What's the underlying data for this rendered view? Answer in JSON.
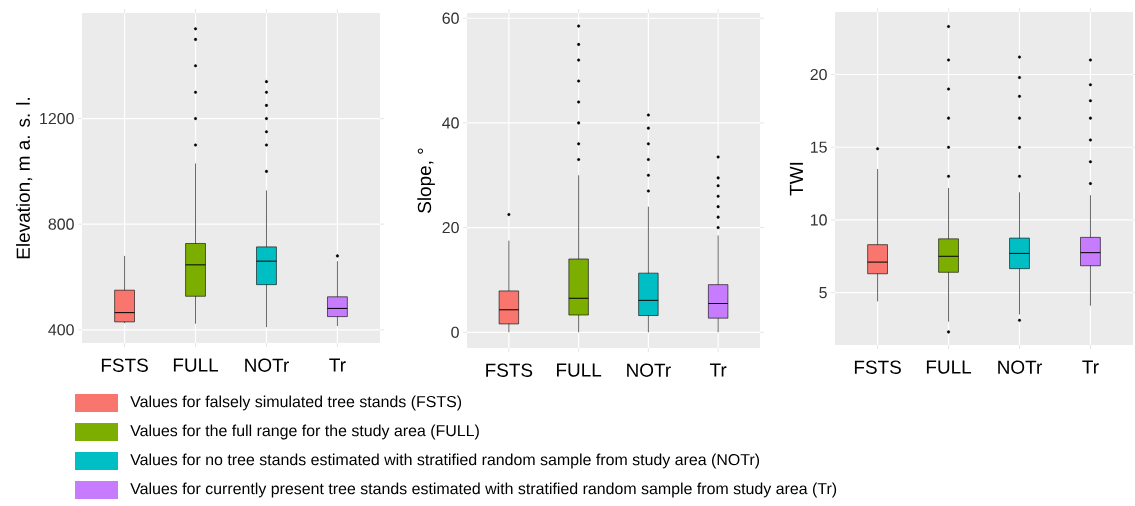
{
  "chart_data": [
    {
      "type": "box",
      "ylabel": "Elevation, m a. s. l.",
      "categories": [
        "FSTS",
        "FULL",
        "NOTr",
        "Tr"
      ],
      "ylim": [
        350,
        1600
      ],
      "yticks": [
        400,
        800,
        1200
      ],
      "grid": true,
      "legend": "bottom",
      "series": [
        {
          "name": "Values for falsely simulated tree stands (FSTS)",
          "color": "#f8766d",
          "boxes": [
            {
              "low": 425,
              "q1": 430,
              "median": 465,
              "q3": 550,
              "high": 680
            },
            null,
            null,
            null
          ]
        },
        {
          "name": "Values for the full range for the study area (FULL)",
          "color": "#7cae00",
          "boxes": [
            null,
            {
              "low": 423,
              "q1": 527,
              "median": 646,
              "q3": 727,
              "high": 1030,
              "outliers": [
                1100,
                1200,
                1300,
                1400,
                1500,
                1540
              ]
            },
            null,
            null
          ]
        },
        {
          "name": "Values for no tree stands estimated with stratified random sample from study area (NOTr)",
          "color": "#00bfc4",
          "boxes": [
            null,
            null,
            {
              "low": 410,
              "q1": 571,
              "median": 660,
              "q3": 714,
              "high": 928,
              "outliers": [
                1000,
                1100,
                1150,
                1200,
                1250,
                1300,
                1340
              ]
            },
            null
          ]
        },
        {
          "name": "Values for currently present tree stands estimated with stratified random sample from study area (Tr)",
          "color": "#c77cff",
          "boxes": [
            null,
            null,
            null,
            {
              "low": 414,
              "q1": 450,
              "median": 481,
              "q3": 525,
              "high": 660,
              "outliers": [
                680
              ]
            }
          ]
        }
      ]
    },
    {
      "type": "box",
      "ylabel": "Slope, °",
      "categories": [
        "FSTS",
        "FULL",
        "NOTr",
        "Tr"
      ],
      "ylim": [
        -3,
        61
      ],
      "yticks": [
        0,
        20,
        40,
        60
      ],
      "grid": true,
      "series": [
        {
          "color": "#f8766d",
          "boxes": [
            {
              "low": 0,
              "q1": 1.6,
              "median": 4.3,
              "q3": 7.9,
              "high": 17.5,
              "outliers": [
                22.5
              ]
            },
            null,
            null,
            null
          ]
        },
        {
          "color": "#7cae00",
          "boxes": [
            null,
            {
              "low": 0,
              "q1": 3.3,
              "median": 6.5,
              "q3": 14,
              "high": 30,
              "outliers": [
                33,
                36,
                40,
                44,
                48,
                52,
                55,
                58.5
              ]
            },
            null,
            null
          ]
        },
        {
          "color": "#00bfc4",
          "boxes": [
            null,
            null,
            {
              "low": 0,
              "q1": 3.2,
              "median": 6.1,
              "q3": 11.3,
              "high": 24,
              "outliers": [
                27,
                30,
                33,
                36,
                39,
                41.5
              ]
            },
            null
          ]
        },
        {
          "color": "#c77cff",
          "boxes": [
            null,
            null,
            null,
            {
              "low": 0,
              "q1": 2.7,
              "median": 5.5,
              "q3": 9.1,
              "high": 18.5,
              "outliers": [
                20,
                22,
                24,
                26,
                28,
                29.5,
                33.5
              ]
            }
          ]
        }
      ]
    },
    {
      "type": "box",
      "ylabel": "TWI",
      "categories": [
        "FSTS",
        "FULL",
        "NOTr",
        "Tr"
      ],
      "ylim": [
        1.4,
        24.3
      ],
      "yticks": [
        5,
        10,
        15,
        20
      ],
      "grid": true,
      "series": [
        {
          "color": "#f8766d",
          "boxes": [
            {
              "low": 4.4,
              "q1": 6.3,
              "median": 7.1,
              "q3": 8.3,
              "high": 13.5,
              "outliers": [
                14.9
              ]
            },
            null,
            null,
            null
          ]
        },
        {
          "color": "#7cae00",
          "boxes": [
            null,
            {
              "low": 3,
              "q1": 6.4,
              "median": 7.5,
              "q3": 8.7,
              "high": 12.2,
              "outliers": [
                2.3,
                13,
                15,
                17,
                19,
                21,
                23.3
              ]
            },
            null,
            null
          ]
        },
        {
          "color": "#00bfc4",
          "boxes": [
            null,
            null,
            {
              "low": 3.5,
              "q1": 6.65,
              "median": 7.7,
              "q3": 8.75,
              "high": 11.9,
              "outliers": [
                3.1,
                13,
                15,
                17,
                18.5,
                19.8,
                21.2
              ]
            },
            null
          ]
        },
        {
          "color": "#c77cff",
          "boxes": [
            null,
            null,
            null,
            {
              "low": 4.1,
              "q1": 6.85,
              "median": 7.75,
              "q3": 8.8,
              "high": 11.7,
              "outliers": [
                12.5,
                14,
                15.5,
                17,
                18.2,
                19.3,
                21
              ]
            }
          ]
        }
      ]
    }
  ]
}
